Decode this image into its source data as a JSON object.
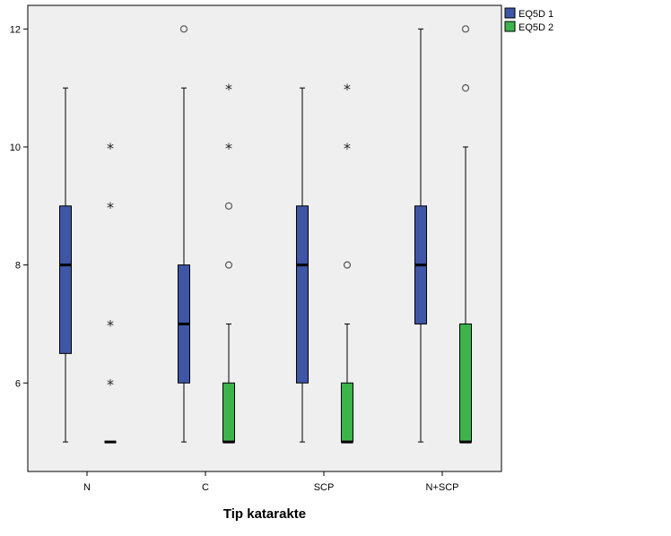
{
  "chart_data": {
    "type": "boxplot",
    "xlabel": "Tip katarakte",
    "ylabel": "",
    "categories": [
      "N",
      "C",
      "SCP",
      "N+SCP"
    ],
    "ylim": [
      4.5,
      12.4
    ],
    "yticks": [
      6,
      8,
      10,
      12
    ],
    "grid": false,
    "legend_position": "top-right-outside",
    "series": [
      {
        "name": "EQ5D 1",
        "color": "#3f55a6",
        "boxes": [
          {
            "category": "N",
            "whisker_low": 5,
            "q1": 6.5,
            "median": 8,
            "q3": 9,
            "whisker_high": 11,
            "outliers": [],
            "extremes": []
          },
          {
            "category": "C",
            "whisker_low": 5,
            "q1": 6,
            "median": 7,
            "q3": 8,
            "whisker_high": 11,
            "outliers": [
              12
            ],
            "extremes": []
          },
          {
            "category": "SCP",
            "whisker_low": 5,
            "q1": 6,
            "median": 8,
            "q3": 9,
            "whisker_high": 11,
            "outliers": [],
            "extremes": []
          },
          {
            "category": "N+SCP",
            "whisker_low": 5,
            "q1": 7,
            "median": 8,
            "q3": 9,
            "whisker_high": 12,
            "outliers": [],
            "extremes": []
          }
        ]
      },
      {
        "name": "EQ5D 2",
        "color": "#3cb44b",
        "boxes": [
          {
            "category": "N",
            "whisker_low": 5,
            "q1": 5,
            "median": 5,
            "q3": 5,
            "whisker_high": 5,
            "outliers": [],
            "extremes": [
              6,
              7,
              9,
              10
            ]
          },
          {
            "category": "C",
            "whisker_low": 5,
            "q1": 5,
            "median": 5,
            "q3": 6,
            "whisker_high": 7,
            "outliers": [
              8,
              9
            ],
            "extremes": [
              10,
              11
            ]
          },
          {
            "category": "SCP",
            "whisker_low": 5,
            "q1": 5,
            "median": 5,
            "q3": 6,
            "whisker_high": 7,
            "outliers": [
              8
            ],
            "extremes": [
              10,
              11
            ]
          },
          {
            "category": "N+SCP",
            "whisker_low": 5,
            "q1": 5,
            "median": 5,
            "q3": 7,
            "whisker_high": 10,
            "outliers": [
              11,
              12
            ],
            "extremes": []
          }
        ]
      }
    ]
  }
}
